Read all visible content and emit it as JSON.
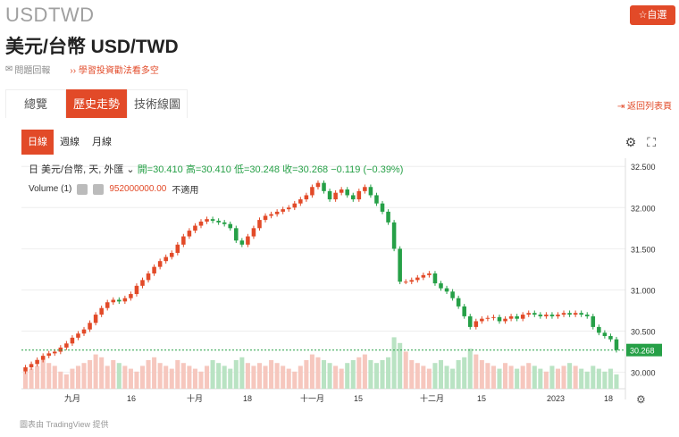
{
  "header": {
    "ticker": "USDTWD",
    "title": "美元/台幣 USD/TWD",
    "follow_label": "☆自選",
    "faq_label": "問題回報",
    "learn_label": "學習投資勸法看多空"
  },
  "tabs": [
    {
      "label": "總覽",
      "active": false
    },
    {
      "label": "歷史走勢",
      "active": true
    },
    {
      "label": "技術線圖",
      "active": false
    }
  ],
  "back_label": "返回列表頁",
  "intervals": [
    {
      "label": "日線",
      "active": true
    },
    {
      "label": "週線",
      "active": false
    },
    {
      "label": "月線",
      "active": false
    }
  ],
  "legend": {
    "prefix": "日 美元/台幣, 天, 外匯",
    "open": "開=30.410",
    "high": "高=30.410",
    "low": "低=30.248",
    "close": "收=30.268",
    "change": "−0.119 (−0.39%)",
    "volume_label": "Volume (1)",
    "volume_value": "952000000.00",
    "volume_na": "不適用"
  },
  "colors": {
    "up": "#e24a28",
    "down": "#26a047",
    "accent": "#e24a28"
  },
  "footer": "圖表由 TradingView 提供",
  "chart_data": {
    "type": "candlestick",
    "last_price_label": "30.268",
    "y_ticks": [
      "32.500",
      "32.000",
      "31.500",
      "31.000",
      "30.500",
      "30.000"
    ],
    "ylim": [
      29.8,
      32.6
    ],
    "x_labels": [
      "九月",
      "16",
      "十月",
      "18",
      "十一月",
      "15",
      "十二月",
      "15",
      "2023",
      "18"
    ],
    "closes": [
      30.06,
      30.1,
      30.15,
      30.2,
      30.23,
      30.25,
      30.3,
      30.35,
      30.42,
      30.47,
      30.52,
      30.6,
      30.7,
      30.78,
      30.85,
      30.88,
      30.86,
      30.9,
      30.95,
      31.05,
      31.12,
      31.2,
      31.28,
      31.35,
      31.4,
      31.45,
      31.55,
      31.65,
      31.72,
      31.78,
      31.83,
      31.86,
      31.84,
      31.82,
      31.8,
      31.75,
      31.6,
      31.55,
      31.65,
      31.75,
      31.85,
      31.9,
      31.92,
      31.95,
      31.98,
      32.0,
      32.05,
      32.1,
      32.15,
      32.25,
      32.3,
      32.2,
      32.1,
      32.18,
      32.22,
      32.15,
      32.1,
      32.2,
      32.25,
      32.15,
      32.05,
      31.95,
      31.82,
      31.5,
      31.1,
      31.1,
      31.12,
      31.15,
      31.18,
      31.2,
      31.08,
      31.02,
      30.98,
      30.9,
      30.8,
      30.68,
      30.55,
      30.62,
      30.65,
      30.66,
      30.67,
      30.62,
      30.65,
      30.68,
      30.65,
      30.7,
      30.72,
      30.7,
      30.68,
      30.7,
      30.68,
      30.7,
      30.72,
      30.7,
      30.72,
      30.7,
      30.68,
      30.55,
      30.48,
      30.44,
      30.4,
      30.27
    ],
    "volumes": [
      0.3,
      0.35,
      0.4,
      0.5,
      0.45,
      0.4,
      0.3,
      0.25,
      0.35,
      0.4,
      0.45,
      0.5,
      0.6,
      0.55,
      0.4,
      0.5,
      0.45,
      0.4,
      0.35,
      0.3,
      0.4,
      0.5,
      0.55,
      0.45,
      0.4,
      0.35,
      0.5,
      0.45,
      0.4,
      0.35,
      0.3,
      0.4,
      0.5,
      0.45,
      0.4,
      0.35,
      0.5,
      0.55,
      0.45,
      0.4,
      0.45,
      0.4,
      0.5,
      0.45,
      0.4,
      0.35,
      0.3,
      0.4,
      0.5,
      0.6,
      0.55,
      0.5,
      0.45,
      0.4,
      0.35,
      0.45,
      0.5,
      0.55,
      0.6,
      0.5,
      0.45,
      0.5,
      0.55,
      0.9,
      0.8,
      0.65,
      0.5,
      0.45,
      0.4,
      0.35,
      0.45,
      0.5,
      0.4,
      0.35,
      0.5,
      0.55,
      0.7,
      0.6,
      0.5,
      0.45,
      0.4,
      0.35,
      0.45,
      0.4,
      0.35,
      0.4,
      0.45,
      0.4,
      0.35,
      0.3,
      0.4,
      0.35,
      0.4,
      0.45,
      0.4,
      0.35,
      0.3,
      0.4,
      0.35,
      0.3,
      0.35,
      0.25
    ]
  }
}
